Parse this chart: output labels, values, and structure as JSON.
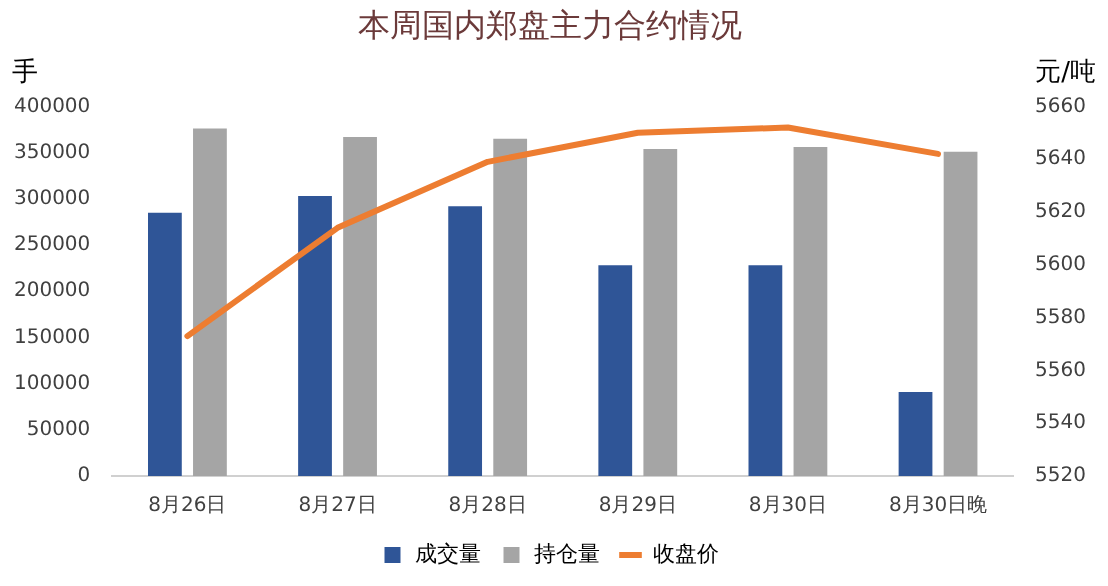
{
  "chart_data": {
    "type": "bar",
    "title": "本周国内郑盘主力合约情况",
    "ylabel": "手",
    "y2label": "元/吨",
    "categories": [
      "8月26日",
      "8月27日",
      "8月28日",
      "8月29日",
      "8月30日",
      "8月30日晚"
    ],
    "series": [
      {
        "name": "成交量",
        "color": "#2f5597",
        "values": [
          285000,
          303000,
          292000,
          228000,
          228000,
          91000
        ]
      },
      {
        "name": "持仓量",
        "color": "#a5a5a5",
        "values": [
          376000,
          367000,
          365000,
          354000,
          356000,
          351000
        ]
      },
      {
        "name": "收盘价",
        "type": "line",
        "axis": "y2",
        "color": "#ed7d31",
        "values": [
          5573,
          5614,
          5639,
          5650,
          5652,
          5642
        ]
      }
    ],
    "ylim": [
      0,
      400000
    ],
    "yticks": [
      0,
      50000,
      100000,
      150000,
      200000,
      250000,
      300000,
      350000,
      400000
    ],
    "y2lim": [
      5520,
      5660
    ],
    "y2ticks": [
      5520,
      5540,
      5560,
      5580,
      5600,
      5620,
      5640,
      5660
    ],
    "grid": false,
    "legend": "bottom",
    "marker": "none"
  }
}
